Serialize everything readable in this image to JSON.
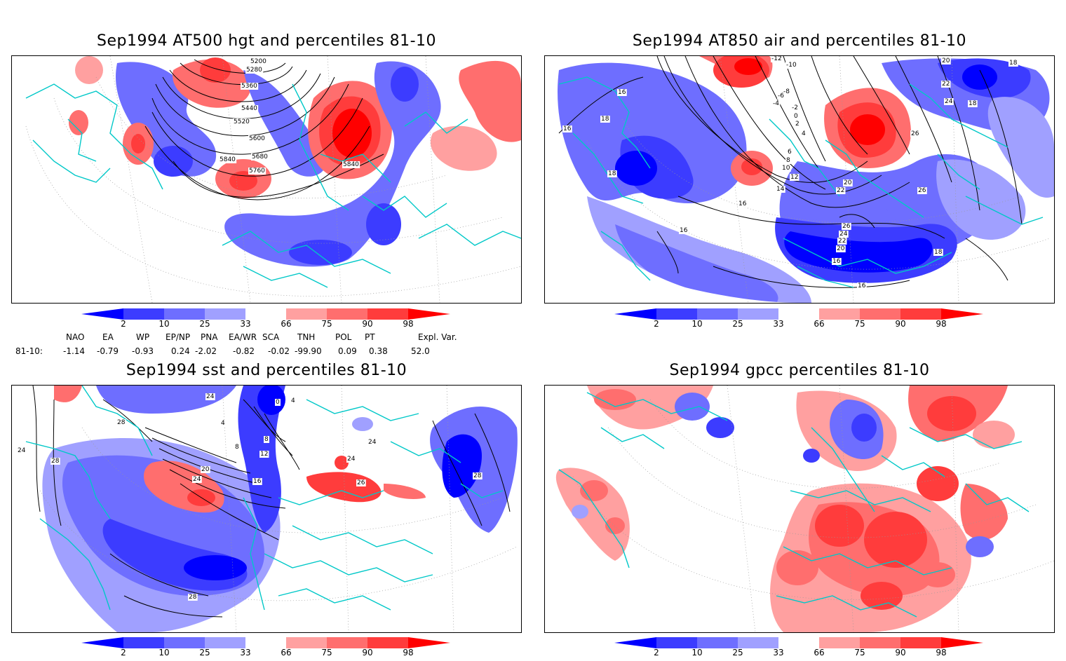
{
  "panels": [
    {
      "id": "hgt500",
      "title": "Sep1994 AT500 hgt and percentiles 81-10",
      "contour_labels": [
        "5200",
        "5280",
        "5360",
        "5440",
        "5520",
        "5600",
        "5680",
        "5760",
        "5840",
        "5840"
      ]
    },
    {
      "id": "air850",
      "title": "Sep1994 AT850 air and percentiles 81-10",
      "contour_labels": [
        "-12",
        "-10",
        "-8",
        "-6",
        "-4",
        "-2",
        "0",
        "2",
        "4",
        "6",
        "8",
        "10",
        "12",
        "14",
        "16",
        "16",
        "16",
        "16",
        "16",
        "16",
        "18",
        "18",
        "18",
        "18",
        "18",
        "20",
        "20",
        "20",
        "22",
        "22",
        "22",
        "24",
        "24",
        "26",
        "26",
        "26"
      ]
    },
    {
      "id": "sst",
      "title": "Sep1994 sst and percentiles 81-10",
      "contour_labels": [
        "28",
        "28",
        "24",
        "24",
        "4",
        "8",
        "8",
        "12",
        "16",
        "20",
        "24",
        "26",
        "24",
        "0",
        "4",
        "28",
        "28",
        "24"
      ]
    },
    {
      "id": "gpcc",
      "title": "Sep1994 gpcc percentiles 81-10",
      "contour_labels": []
    }
  ],
  "colorbar": {
    "labels": [
      "2",
      "10",
      "25",
      "33",
      "66",
      "75",
      "90",
      "98"
    ],
    "colors": [
      "#0000ff",
      "#3c3cff",
      "#6e6eff",
      "#a0a0ff",
      "#ffffff",
      "#ffa0a0",
      "#ff6e6e",
      "#ff3c3c",
      "#ff0000"
    ]
  },
  "indices": {
    "headers": [
      "NAO",
      "EA",
      "WP",
      "EP/NP",
      "PNA",
      "EA/WR",
      "SCA",
      "TNH",
      "POL",
      "PT",
      "Expl. Var."
    ],
    "row_label": "81-10:",
    "values": [
      "-1.14",
      "-0.79",
      "-0.93",
      "0.24",
      "-2.02",
      "-0.82",
      "-0.02",
      "-99.90",
      "0.09",
      "0.38",
      "52.0"
    ]
  },
  "colors": {
    "coast": "#00c8c8",
    "contour": "#000000",
    "grid": "#999999"
  }
}
